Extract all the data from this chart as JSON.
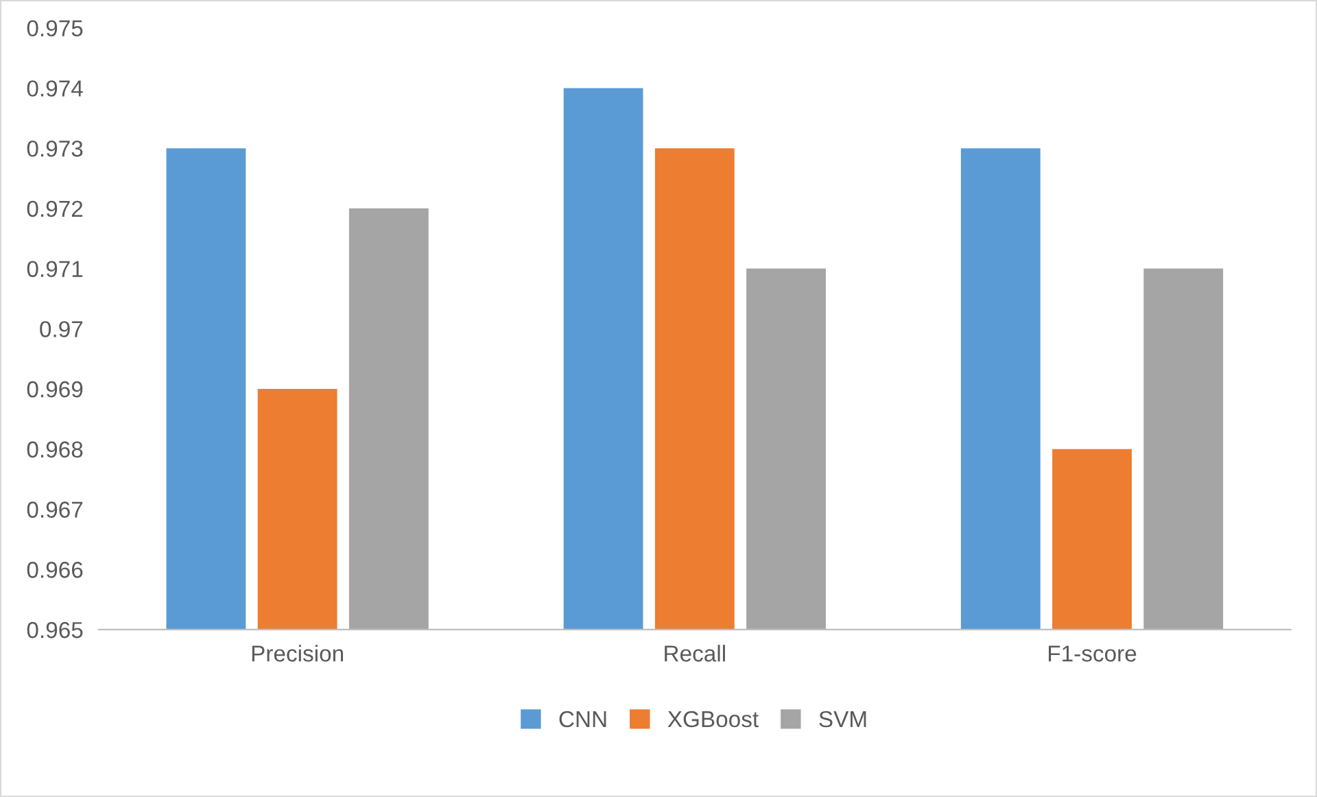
{
  "chart_data": {
    "type": "bar",
    "categories": [
      "Precision",
      "Recall",
      "F1-score"
    ],
    "series": [
      {
        "name": "CNN",
        "color": "#5b9bd5",
        "values": [
          0.973,
          0.974,
          0.973
        ]
      },
      {
        "name": "XGBoost",
        "color": "#ed7d31",
        "values": [
          0.969,
          0.973,
          0.968
        ]
      },
      {
        "name": "SVM",
        "color": "#a5a5a5",
        "values": [
          0.972,
          0.971,
          0.971
        ]
      }
    ],
    "ylim": [
      0.965,
      0.975
    ],
    "yticks": [
      {
        "value": 0.965,
        "label": "0.965"
      },
      {
        "value": 0.966,
        "label": "0.966"
      },
      {
        "value": 0.967,
        "label": "0.967"
      },
      {
        "value": 0.968,
        "label": "0.968"
      },
      {
        "value": 0.969,
        "label": "0.969"
      },
      {
        "value": 0.97,
        "label": "0.97"
      },
      {
        "value": 0.971,
        "label": "0.971"
      },
      {
        "value": 0.972,
        "label": "0.972"
      },
      {
        "value": 0.973,
        "label": "0.973"
      },
      {
        "value": 0.974,
        "label": "0.974"
      },
      {
        "value": 0.975,
        "label": "0.975"
      }
    ],
    "grid": false,
    "legend": "bottom"
  }
}
